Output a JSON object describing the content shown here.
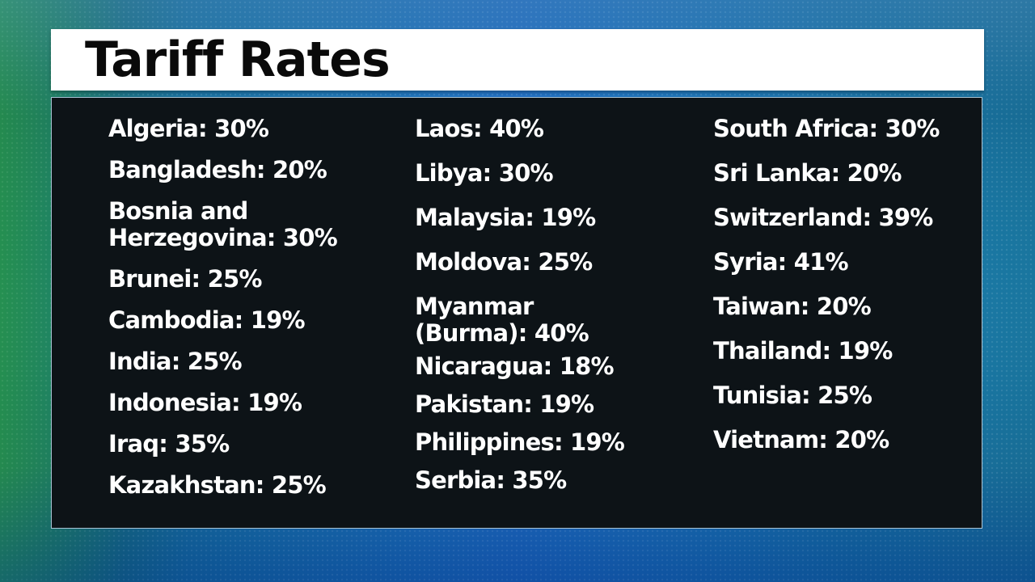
{
  "title": "Tariff Rates",
  "columns": [
    {
      "entries": [
        {
          "lines": [
            "Algeria: 30%"
          ]
        },
        {
          "lines": [
            "Bangladesh: 20%"
          ]
        },
        {
          "lines": [
            "Bosnia and",
            "Herzegovina: 30%"
          ]
        },
        {
          "lines": [
            "Brunei: 25%"
          ]
        },
        {
          "lines": [
            "Cambodia: 19%"
          ]
        },
        {
          "lines": [
            "India: 25%"
          ]
        },
        {
          "lines": [
            "Indonesia: 19%"
          ]
        },
        {
          "lines": [
            "Iraq: 35%"
          ]
        },
        {
          "lines": [
            "Kazakhstan: 25%"
          ]
        }
      ]
    },
    {
      "entries": [
        {
          "lines": [
            "Laos: 40%"
          ]
        },
        {
          "lines": [
            "Libya: 30%"
          ]
        },
        {
          "lines": [
            "Malaysia: 19%"
          ]
        },
        {
          "lines": [
            "Moldova: 25%"
          ]
        },
        {
          "lines": [
            "Myanmar",
            "(Burma): 40%"
          ]
        },
        {
          "lines": [
            "Nicaragua: 18%"
          ]
        },
        {
          "lines": [
            "Pakistan: 19%"
          ]
        },
        {
          "lines": [
            "Philippines: 19%"
          ]
        },
        {
          "lines": [
            "Serbia: 35%"
          ]
        }
      ]
    },
    {
      "entries": [
        {
          "lines": [
            "South Africa: 30%"
          ]
        },
        {
          "lines": [
            "Sri Lanka: 20%"
          ]
        },
        {
          "lines": [
            "Switzerland: 39%"
          ]
        },
        {
          "lines": [
            "Syria: 41%"
          ]
        },
        {
          "lines": [
            "Taiwan: 20%"
          ]
        },
        {
          "lines": [
            "Thailand: 19%"
          ]
        },
        {
          "lines": [
            "Tunisia: 25%"
          ]
        },
        {
          "lines": [
            "Vietnam: 20%"
          ]
        }
      ]
    }
  ]
}
